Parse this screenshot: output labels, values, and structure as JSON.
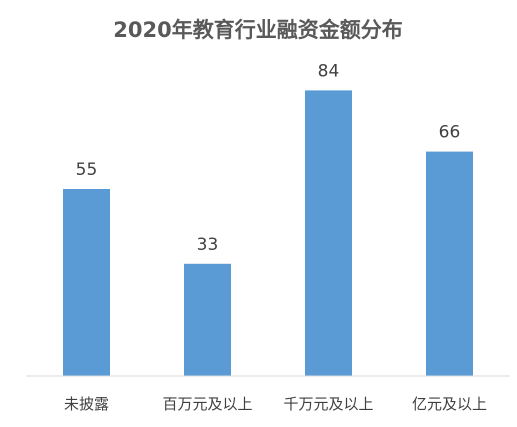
{
  "chart_data": {
    "type": "bar",
    "title": "2020年教育行业融资金额分布",
    "categories": [
      "未披露",
      "百万元及以上",
      "千万元及以上",
      "亿元及以上"
    ],
    "values": [
      55,
      33,
      84,
      66
    ],
    "ylim": [
      0,
      90
    ],
    "grid": false,
    "legend": "none",
    "data_labels": true,
    "bar_color": "#5B9BD5",
    "axis_color": "#D9D9D9"
  }
}
